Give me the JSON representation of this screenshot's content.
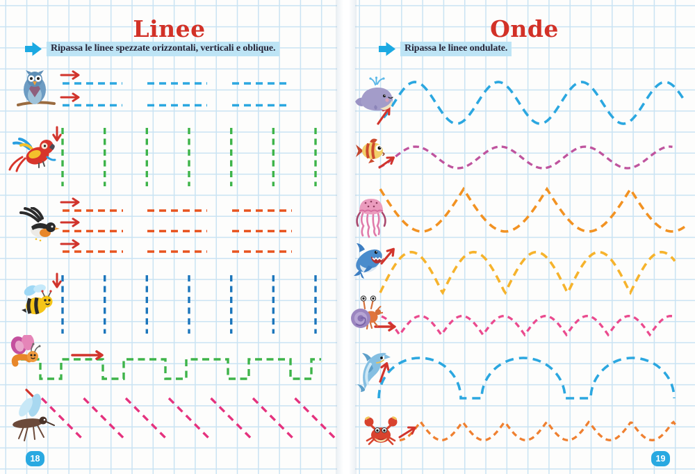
{
  "spread": {
    "left_page": {
      "title": "Linee",
      "instruction": "Ripassa le linee spezzate orizzontali, verticali e oblique.",
      "page_number": "18",
      "rows": [
        {
          "animal": "owl",
          "line_type": "horizontal dashed segments",
          "line_count": 2,
          "color": "#2BA7E0"
        },
        {
          "animal": "parrot",
          "line_type": "vertical dashed lines",
          "line_count": 7,
          "color": "#3EB44A"
        },
        {
          "animal": "songbird",
          "line_type": "horizontal dashed segments",
          "line_count": 3,
          "color": "#E8541F"
        },
        {
          "animal": "bee",
          "line_type": "vertical dashed lines",
          "line_count": 7,
          "color": "#1C76BC"
        },
        {
          "animal": "butterfly",
          "line_type": "square-wave crenellated dashed line",
          "line_count": 1,
          "color": "#3EB44A"
        },
        {
          "animal": "dragonfly",
          "line_type": "oblique dashed lines",
          "line_count": 7,
          "color": "#E5327E"
        }
      ]
    },
    "right_page": {
      "title": "Onde",
      "instruction": "Ripassa le linee ondulate.",
      "page_number": "19",
      "rows": [
        {
          "animal": "whale",
          "line_type": "large sine wave",
          "color": "#2BA7E0"
        },
        {
          "animal": "fish",
          "line_type": "small sine wave",
          "color": "#BF549E"
        },
        {
          "animal": "jellyfish",
          "line_type": "deep garland wave with cusps up",
          "color": "#F29222"
        },
        {
          "animal": "shark",
          "line_type": "arched wave with cusps down",
          "color": "#F6B32C"
        },
        {
          "animal": "hermit-crab",
          "line_type": "small arched wave with cusps down",
          "color": "#EA4A8E"
        },
        {
          "animal": "dolphin",
          "line_type": "large domes joined by flat bases",
          "color": "#2BA7E0"
        },
        {
          "animal": "crab",
          "line_type": "small garland wave with cusps up",
          "color": "#EF8030"
        }
      ]
    }
  },
  "colors": {
    "title": "#D23127",
    "instruction_text": "#262538",
    "instruction_highlight": "#BDE4F5",
    "instruction_arrow": "#1BA9E2",
    "start_arrow": "#D1342C",
    "page_badge": "#29A9E1",
    "grid_line": "#C9E3F3",
    "paper": "#FDFDFC"
  }
}
